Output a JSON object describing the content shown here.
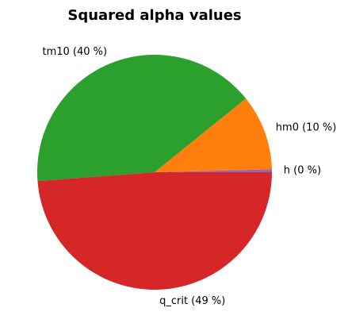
{
  "chart_data": {
    "type": "pie",
    "title": "Squared alpha values",
    "slices": [
      {
        "name": "h",
        "value": 0.4,
        "label": "h (0 %)",
        "color": "#9467bd"
      },
      {
        "name": "hm0",
        "value": 10.4,
        "label": "hm0 (10 %)",
        "color": "#ff7f0e"
      },
      {
        "name": "tm10",
        "value": 40.4,
        "label": "tm10 (40 %)",
        "color": "#2ca02c"
      },
      {
        "name": "q_crit",
        "value": 48.8,
        "label": "q_crit (49 %)",
        "color": "#d62728"
      }
    ],
    "start_angle": 0,
    "direction": "counterclockwise",
    "legend": "none"
  }
}
